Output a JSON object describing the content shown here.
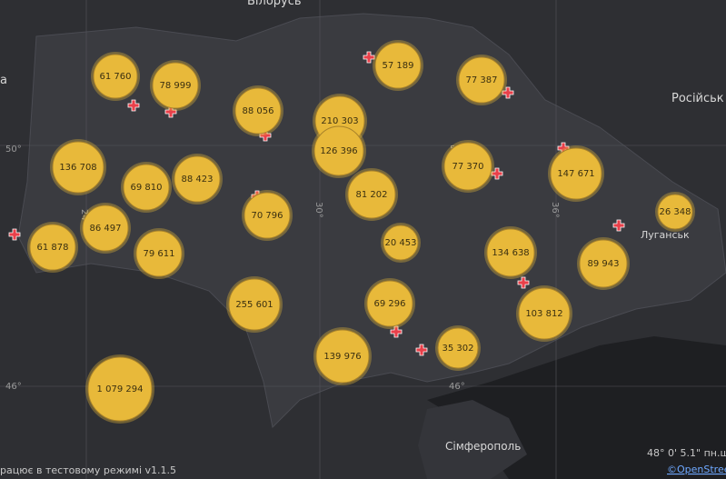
{
  "map": {
    "places": [
      "Білорусь",
      "Російськ",
      "а",
      "Луганськ",
      "Сімферополь"
    ],
    "graticule": [
      "50°",
      "50°",
      "46°",
      "46°",
      "24°",
      "30°",
      "36°"
    ],
    "bubbles": [
      "61 760",
      "78 999",
      "88 056",
      "210 303",
      "57 189",
      "77 387",
      "126 396",
      "136 708",
      "69 810",
      "88 423",
      "77 370",
      "147 671",
      "81 202",
      "70 796",
      "26 348",
      "86 497",
      "61 878",
      "79 611",
      "20 453",
      "134 638",
      "89 943",
      "255 601",
      "69 296",
      "103 812",
      "35 302",
      "139 976",
      "1 079 294"
    ],
    "footer": {
      "status": "рацює в тестовому режимі v1.1.5",
      "coords": "48° 0' 5.1\" пн.ш.",
      "attribution": "©OpenStree"
    }
  }
}
